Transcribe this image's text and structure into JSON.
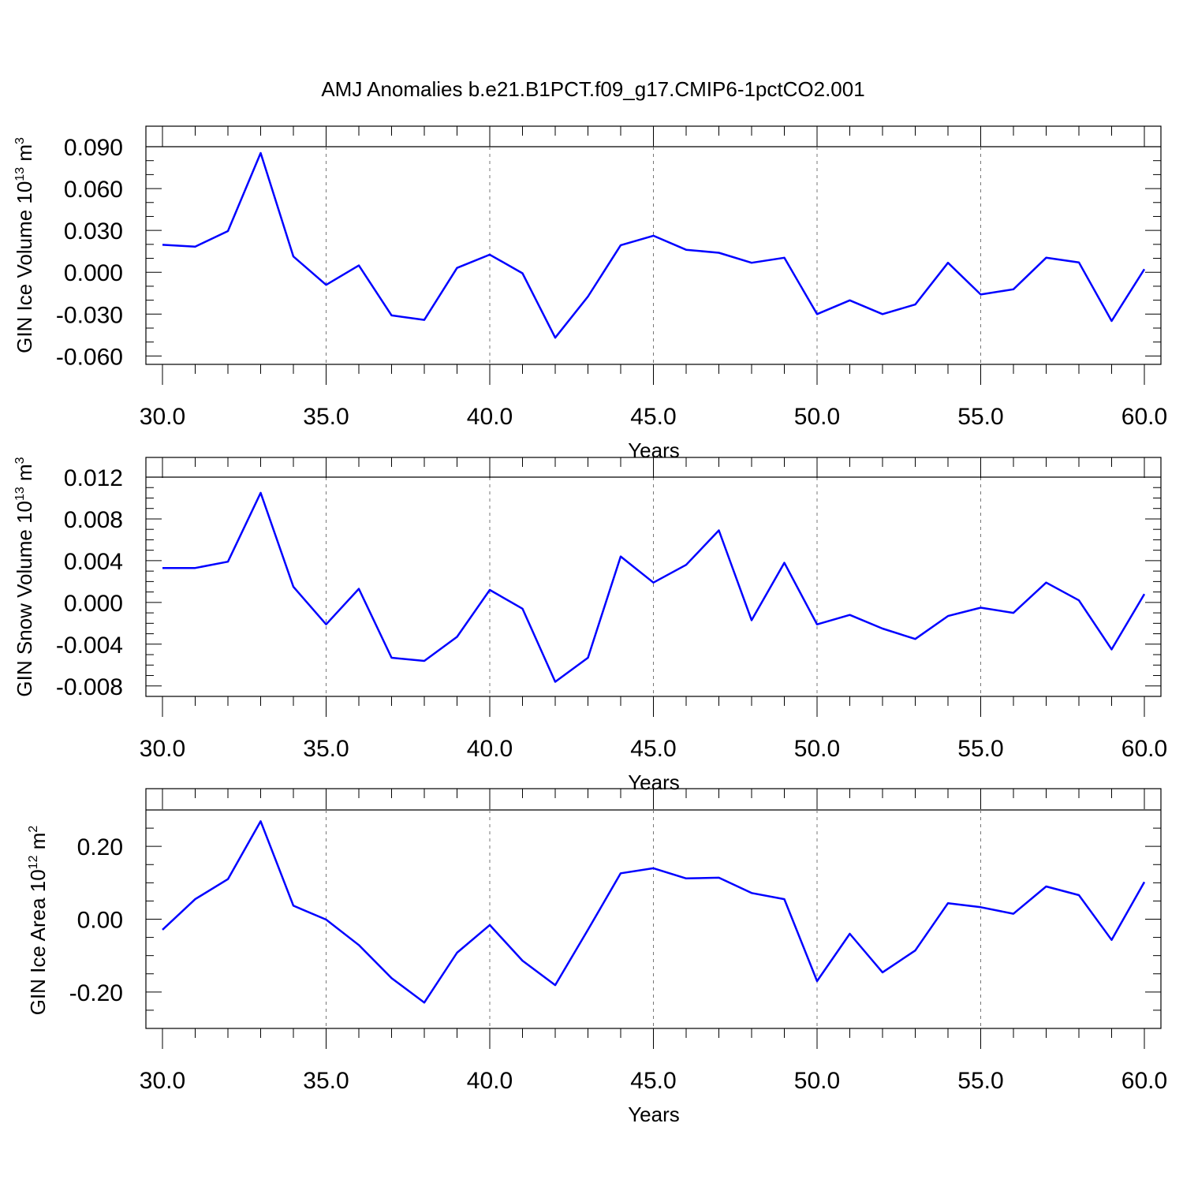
{
  "title": "AMJ Anomalies b.e21.B1PCT.f09_g17.CMIP6-1pctCO2.001",
  "chart_data": [
    {
      "type": "line",
      "ylabel_main": "GIN Ice Volume 10",
      "ylabel_exp": "13",
      "ylabel_unit": "m",
      "ylabel_unit_exp": "3",
      "xlabel": "Years",
      "xlim": [
        30,
        60
      ],
      "ylim": [
        -0.066,
        0.09
      ],
      "x_ticks": [
        30,
        35,
        40,
        45,
        50,
        55,
        60
      ],
      "x_tick_labels": [
        "30.0",
        "35.0",
        "40.0",
        "45.0",
        "50.0",
        "55.0",
        "60.0"
      ],
      "y_ticks": [
        -0.06,
        -0.03,
        0.0,
        0.03,
        0.06,
        0.09
      ],
      "y_tick_labels": [
        "-0.060",
        "-0.030",
        "0.000",
        "0.030",
        "0.060",
        "0.090"
      ],
      "y_minor_step": 0.01,
      "x": [
        30,
        31,
        32,
        33,
        34,
        35,
        36,
        37,
        38,
        39,
        40,
        41,
        42,
        43,
        44,
        45,
        46,
        47,
        48,
        49,
        50,
        51,
        52,
        53,
        54,
        55,
        56,
        57,
        58,
        59,
        60
      ],
      "values": [
        0.0197,
        0.0184,
        0.0295,
        0.0855,
        0.0113,
        -0.009,
        0.0049,
        -0.0309,
        -0.0341,
        0.0031,
        0.0126,
        -0.0007,
        -0.0469,
        -0.0174,
        0.0194,
        0.0262,
        0.0161,
        0.014,
        0.0068,
        0.0104,
        -0.03,
        -0.0201,
        -0.03,
        -0.0231,
        0.0068,
        -0.0159,
        -0.0122,
        0.0104,
        0.0071,
        -0.0349,
        0.0022
      ]
    },
    {
      "type": "line",
      "ylabel_main": "GIN Snow Volume 10",
      "ylabel_exp": "13",
      "ylabel_unit": "m",
      "ylabel_unit_exp": "3",
      "xlabel": "Years",
      "xlim": [
        30,
        60
      ],
      "ylim": [
        -0.009,
        0.012
      ],
      "x_ticks": [
        30,
        35,
        40,
        45,
        50,
        55,
        60
      ],
      "x_tick_labels": [
        "30.0",
        "35.0",
        "40.0",
        "45.0",
        "50.0",
        "55.0",
        "60.0"
      ],
      "y_ticks": [
        -0.008,
        -0.004,
        0.0,
        0.004,
        0.008,
        0.012
      ],
      "y_tick_labels": [
        "-0.008",
        "-0.004",
        "0.000",
        "0.004",
        "0.008",
        "0.012"
      ],
      "y_minor_step": 0.001,
      "x": [
        30,
        31,
        32,
        33,
        34,
        35,
        36,
        37,
        38,
        39,
        40,
        41,
        42,
        43,
        44,
        45,
        46,
        47,
        48,
        49,
        50,
        51,
        52,
        53,
        54,
        55,
        56,
        57,
        58,
        59,
        60
      ],
      "values": [
        0.0033,
        0.0033,
        0.0039,
        0.0105,
        0.0015,
        -0.0021,
        0.0013,
        -0.0053,
        -0.0056,
        -0.0033,
        0.0012,
        -0.0006,
        -0.0076,
        -0.0053,
        0.0044,
        0.0019,
        0.0036,
        0.0069,
        -0.0017,
        0.0038,
        -0.0021,
        -0.0012,
        -0.0025,
        -0.0035,
        -0.0013,
        -0.0005,
        -0.001,
        0.0019,
        0.0002,
        -0.0045,
        0.0008
      ]
    },
    {
      "type": "line",
      "ylabel_main": "GIN Ice Area 10",
      "ylabel_exp": "12",
      "ylabel_unit": "m",
      "ylabel_unit_exp": "2",
      "xlabel": "Years",
      "xlim": [
        30,
        60
      ],
      "ylim": [
        -0.3,
        0.3
      ],
      "x_ticks": [
        30,
        35,
        40,
        45,
        50,
        55,
        60
      ],
      "x_tick_labels": [
        "30.0",
        "35.0",
        "40.0",
        "45.0",
        "50.0",
        "55.0",
        "60.0"
      ],
      "y_ticks": [
        -0.2,
        0.0,
        0.2
      ],
      "y_tick_labels": [
        "-0.20",
        "0.00",
        "0.20"
      ],
      "y_minor_step": 0.05,
      "x": [
        30,
        31,
        32,
        33,
        34,
        35,
        36,
        37,
        38,
        39,
        40,
        41,
        42,
        43,
        44,
        45,
        46,
        47,
        48,
        49,
        50,
        51,
        52,
        53,
        54,
        55,
        56,
        57,
        58,
        59,
        60
      ],
      "values": [
        -0.029,
        0.055,
        0.11,
        0.269,
        0.037,
        -0.001,
        -0.071,
        -0.162,
        -0.229,
        -0.092,
        -0.016,
        -0.114,
        -0.181,
        -0.029,
        0.126,
        0.14,
        0.112,
        0.114,
        0.072,
        0.055,
        -0.17,
        -0.04,
        -0.146,
        -0.086,
        0.044,
        0.033,
        0.015,
        0.09,
        0.066,
        -0.057,
        0.102
      ]
    }
  ]
}
